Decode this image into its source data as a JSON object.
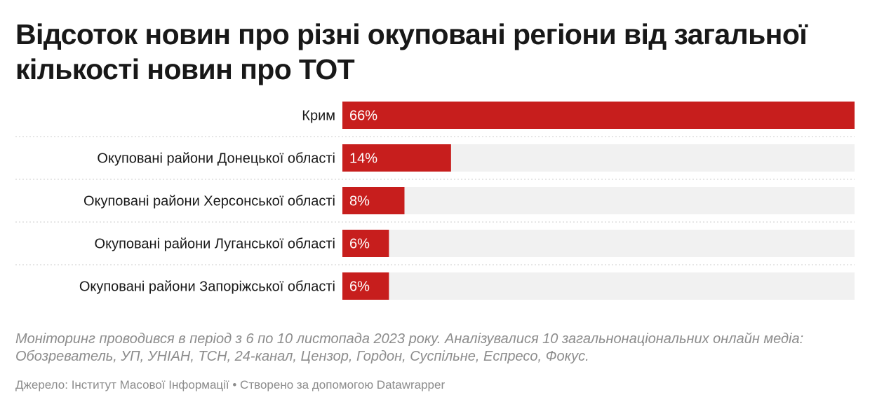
{
  "colors": {
    "bar": "#c71e1d",
    "track": "#f1f1f1",
    "divider": "#cccccc",
    "value_text": "#ffffff"
  },
  "chart_data": {
    "type": "bar",
    "orientation": "horizontal",
    "title": "Відсоток новин про різні окуповані регіони від загальної кількості новин про ТОТ",
    "categories": [
      "Крим",
      "Окуповані райони Донецької області",
      "Окуповані райони Херсонської області",
      "Окуповані райони Луганської області",
      "Окуповані райони Запоріжської області"
    ],
    "values": [
      66,
      14,
      8,
      6,
      6
    ],
    "value_labels": [
      "66%",
      "14%",
      "8%",
      "6%",
      "6%"
    ],
    "xlim": [
      0,
      66
    ],
    "grid": false,
    "legend": "none"
  },
  "notes": "Моніторинг проводився в період з 6 по 10 листопада 2023 року. Аналізувалися 10 загальнонаціональних онлайн медіа: Обозреватель, УП, УНІАН, ТСН, 24-канал, Цензор, Гордон, Суспільне, Еспресо, Фокус.",
  "source": "Джерело: Інститут Масової Інформації • Створено за допомогою Datawrapper"
}
